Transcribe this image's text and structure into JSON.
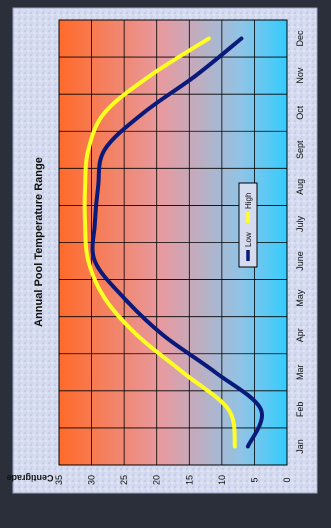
{
  "chart_data": {
    "type": "line",
    "title": "Annual Pool Temperature Range",
    "ylabel": "Centigrade",
    "xlabel": "",
    "categories": [
      "Jan",
      "Feb",
      "Mar",
      "Apr",
      "May",
      "June",
      "July",
      "Aug",
      "Sept",
      "Oct",
      "Nov",
      "Dec"
    ],
    "ylim": [
      0,
      35
    ],
    "yticks": [
      0,
      5,
      10,
      15,
      20,
      25,
      30,
      35
    ],
    "grid": true,
    "legend_position": "center",
    "series": [
      {
        "name": "Low",
        "color": "#0a1a7a",
        "values": [
          6,
          4,
          11,
          19,
          25,
          29.5,
          29.5,
          29,
          28,
          22,
          14,
          7
        ]
      },
      {
        "name": "High",
        "color": "#ffff22",
        "values": [
          8,
          9,
          16,
          23,
          28,
          30.5,
          31,
          31,
          30.5,
          28,
          21,
          12
        ]
      }
    ]
  }
}
